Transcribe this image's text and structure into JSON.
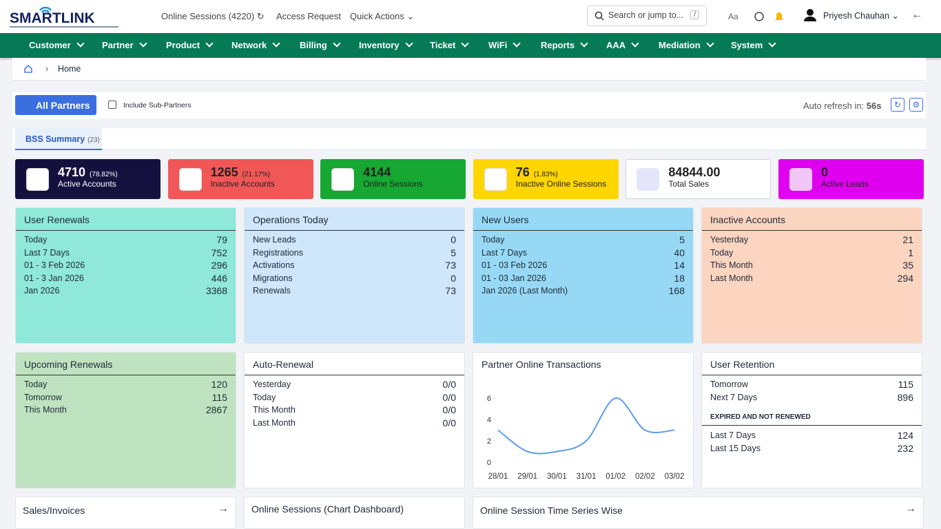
{
  "header": {
    "logo": "SMARTLINK",
    "online_sessions": "Online Sessions",
    "online_sessions_count": "(4220)",
    "access_request": "Access Request",
    "quick_actions": "Quick Actions",
    "search_placeholder": "Search or jump to...",
    "search_key": "/",
    "font_toggle": "Aa",
    "user": "Priyesh Chauhan"
  },
  "nav": [
    "Customer",
    "Partner",
    "Product",
    "Network",
    "Billing",
    "Inventory",
    "Ticket",
    "WiFi",
    "Reports",
    "AAA",
    "Mediation",
    "System"
  ],
  "breadcrumb": "Home",
  "toolbar": {
    "partner_button": "All Partners",
    "include_sub": "Include Sub-Partners",
    "auto_refresh_label": "Auto refresh in:",
    "auto_refresh_value": "56s"
  },
  "tabs": [
    {
      "label": "BSS Summary",
      "count": "(23)"
    }
  ],
  "kpis": [
    {
      "value": "4710",
      "pct": "(78.82%)",
      "label": "Active Accounts"
    },
    {
      "value": "1265",
      "pct": "(21.17%)",
      "label": "Inactive Accounts"
    },
    {
      "value": "4144",
      "label": "Online Sessions"
    },
    {
      "value": "76",
      "pct": "(1.83%)",
      "label": "Inactive Online Sessions"
    },
    {
      "value": "84844.00",
      "label": "Total Sales"
    },
    {
      "value": "0",
      "label": "Active Leads"
    }
  ],
  "cards": [
    {
      "title": "User Renewals",
      "rows": [
        [
          "Today",
          "79"
        ],
        [
          "Last 7 Days",
          "752"
        ],
        [
          "01 - 3 Feb 2026",
          "296"
        ],
        [
          "01 - 3 Jan 2026",
          "446"
        ],
        [
          "Jan 2026",
          "3368"
        ]
      ]
    },
    {
      "title": "Operations Today",
      "rows": [
        [
          "New Leads",
          "0"
        ],
        [
          "Registrations",
          "5"
        ],
        [
          "Activations",
          "73"
        ],
        [
          "Migrations",
          "0"
        ],
        [
          "Renewals",
          "73"
        ]
      ]
    },
    {
      "title": "New Users",
      "rows": [
        [
          "Today",
          "5"
        ],
        [
          "Last 7 Days",
          "40"
        ],
        [
          "01 - 03 Feb 2026",
          "14"
        ],
        [
          "01 - 03 Jan 2026",
          "18"
        ],
        [
          "Jan 2026 (Last Month)",
          "168"
        ]
      ]
    },
    {
      "title": "Inactive Accounts",
      "rows": [
        [
          "Yesterday",
          "21"
        ],
        [
          "Today",
          "1"
        ],
        [
          "This Month",
          "35"
        ],
        [
          "Last Month",
          "294"
        ]
      ]
    },
    {
      "title": "Upcoming Renewals",
      "rows": [
        [
          "Today",
          "120"
        ],
        [
          "Tomorrow",
          "115"
        ],
        [
          "This Month",
          "2867"
        ]
      ]
    },
    {
      "title": "Auto-Renewal",
      "rows": [
        [
          "Yesterday",
          "0/0"
        ],
        [
          "Today",
          "0/0"
        ],
        [
          "This Month",
          "0/0"
        ],
        [
          "Last Month",
          "0/0"
        ]
      ]
    },
    {
      "title": "Partner Online Transactions",
      "chart": {
        "type": "line",
        "x": [
          "28/01",
          "29/01",
          "30/01",
          "31/01",
          "01/02",
          "02/02",
          "03/02"
        ],
        "values": [
          3,
          1,
          1,
          2,
          6,
          3,
          3
        ],
        "color": "#5b9bea",
        "ylim": [
          0,
          6
        ],
        "yticks": [
          0,
          2,
          4,
          6
        ]
      }
    },
    {
      "title": "User Retention",
      "rows": [
        [
          "Tomorrow",
          "115"
        ],
        [
          "Next 7 Days",
          "896"
        ]
      ],
      "section": "EXPIRED AND NOT RENEWED",
      "rows2": [
        [
          "Last 7 Days",
          "124"
        ],
        [
          "Last 15 Days",
          "232"
        ]
      ]
    }
  ],
  "bottom": [
    "Sales/Invoices",
    "Online Sessions (Chart Dashboard)",
    "Online Session Time Series Wise"
  ]
}
